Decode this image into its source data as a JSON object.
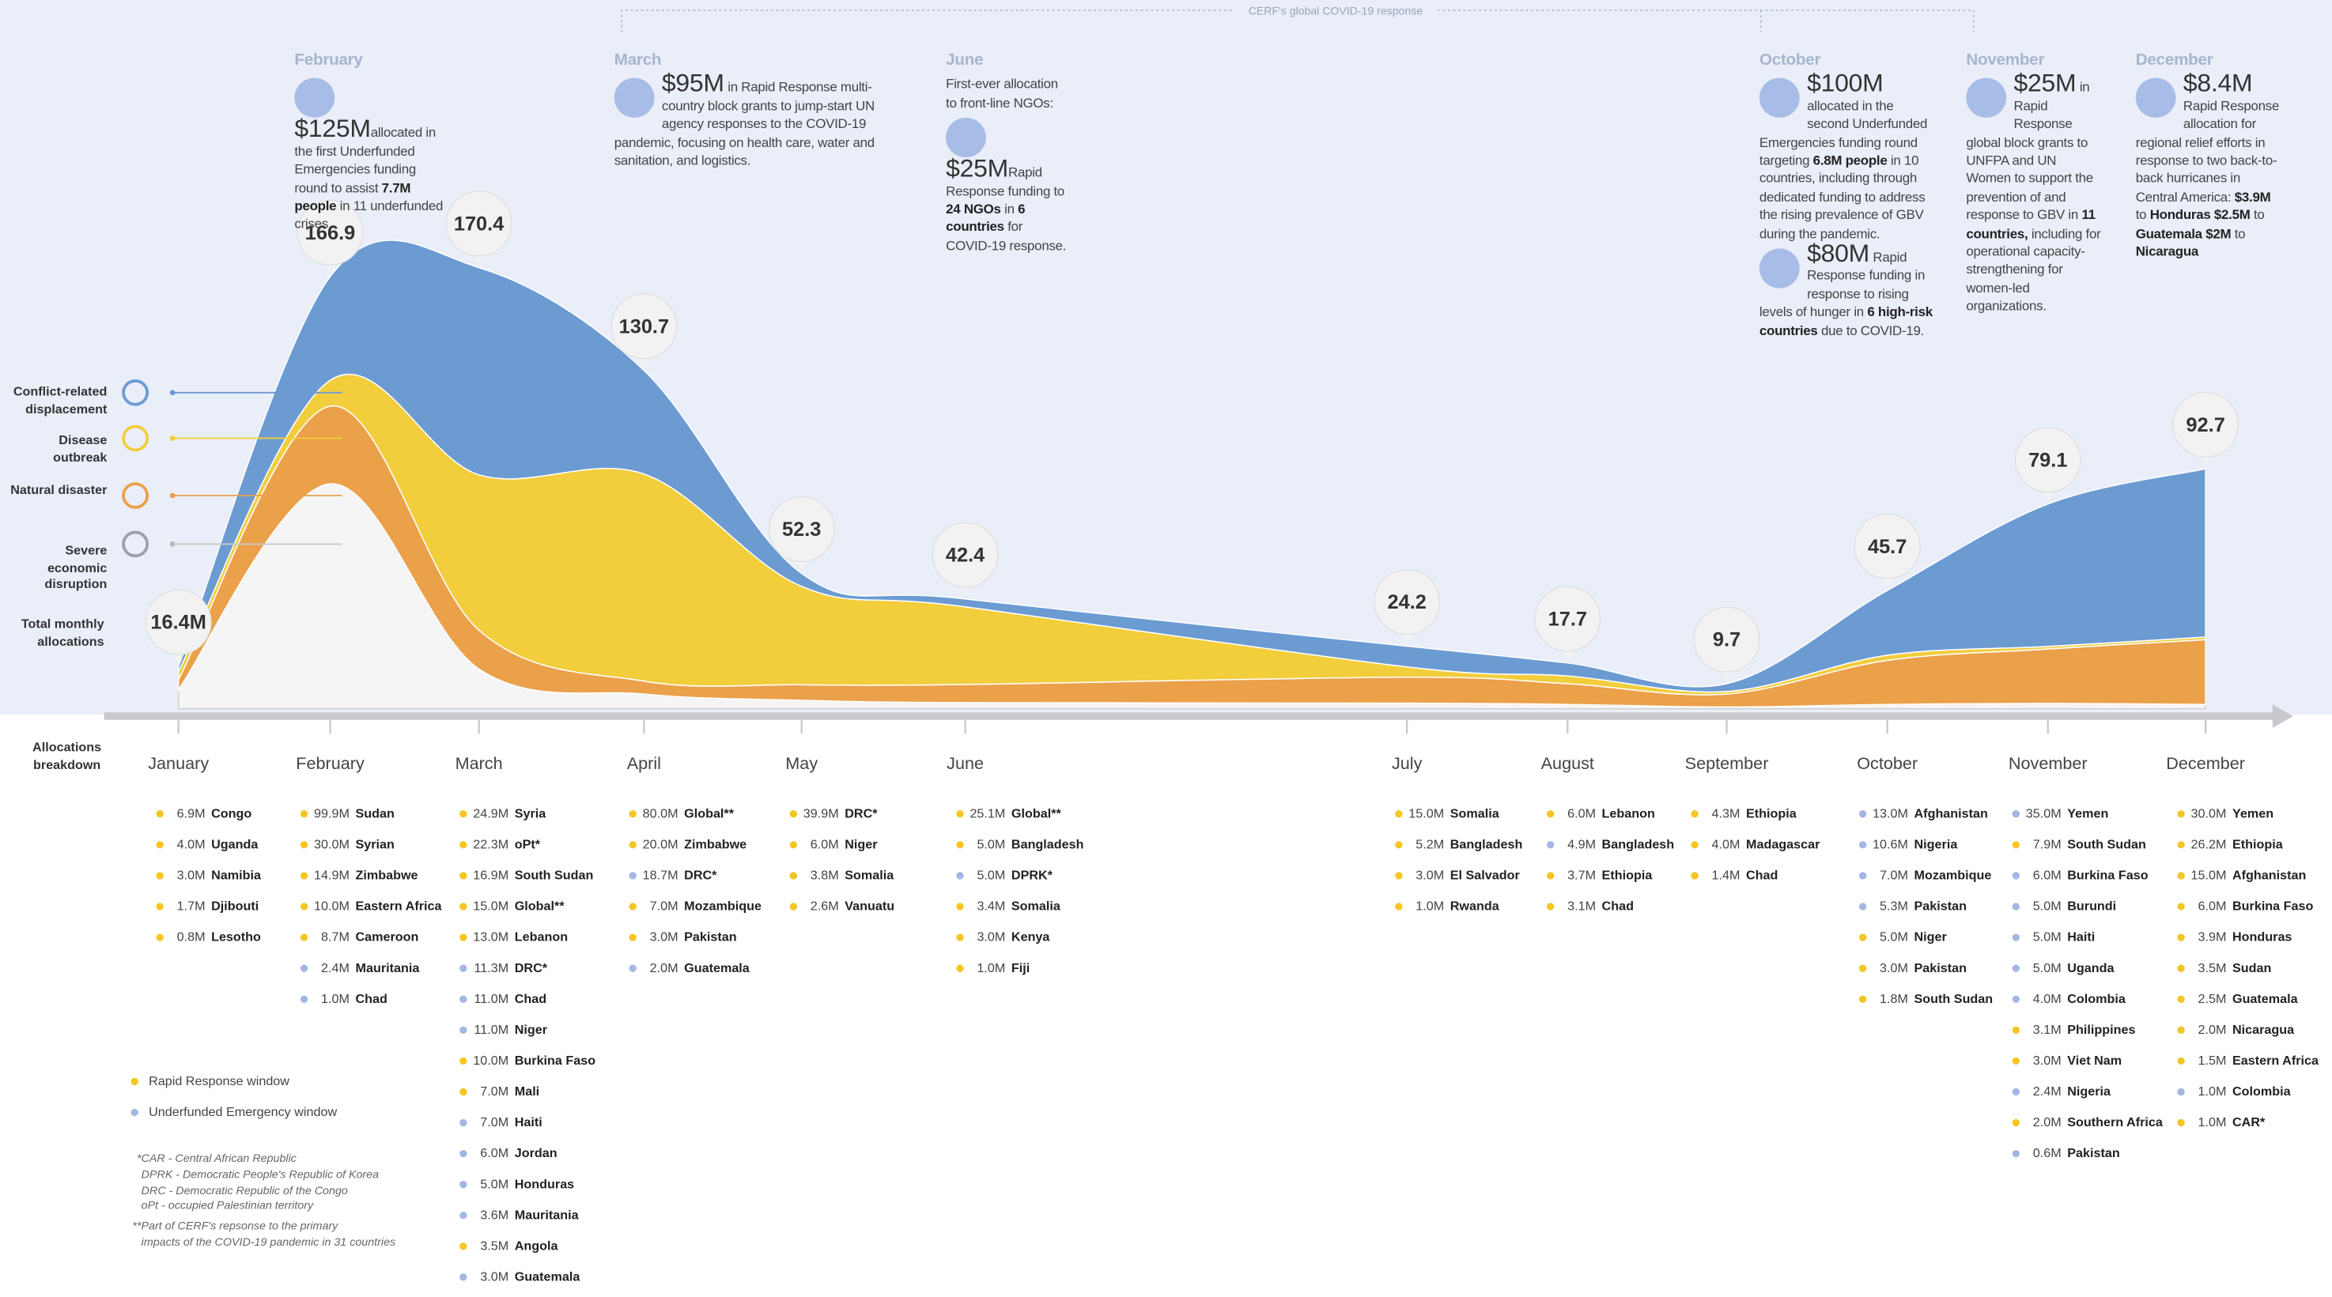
{
  "bracket_label": "CERF's global COVID-19 response",
  "chart_data": {
    "type": "area",
    "categories": [
      "January",
      "February",
      "March",
      "April",
      "May",
      "June",
      "July",
      "August",
      "September",
      "October",
      "November",
      "December"
    ],
    "series": [
      {
        "name": "Conflict-related displacement",
        "color": "#6c9bd2",
        "values": [
          2,
          40,
          80,
          40,
          5,
          3,
          8,
          5,
          3,
          25,
          55,
          65
        ]
      },
      {
        "name": "Disease outbreak",
        "color": "#f2cd3c",
        "values": [
          3,
          10,
          60,
          80,
          38,
          30,
          4,
          3,
          1,
          2,
          1,
          1
        ]
      },
      {
        "name": "Natural disaster",
        "color": "#eba04a",
        "values": [
          4,
          30,
          15,
          5,
          6,
          7,
          10,
          8,
          5,
          17,
          21,
          25
        ]
      },
      {
        "name": "Severe economic disruption",
        "color": "#f5f5f5",
        "values": [
          7.4,
          86.9,
          15.4,
          5.7,
          3.3,
          2.4,
          2.2,
          1.7,
          0.7,
          1.7,
          2.1,
          1.7
        ]
      }
    ],
    "totals": {
      "name": "Total monthly allocations",
      "values": [
        16.4,
        166.9,
        170.4,
        130.7,
        52.3,
        42.4,
        24.2,
        17.7,
        9.7,
        45.7,
        79.1,
        92.7
      ],
      "value_labels": [
        "16.4M",
        "166.9",
        "170.4",
        "130.7",
        "52.3",
        "42.4",
        "24.2",
        "17.7",
        "9.7",
        "45.7",
        "79.1",
        "92.7"
      ]
    },
    "stacked": true
  },
  "annotations": [
    {
      "month": "February",
      "blocks": [
        {
          "amount": "$125M",
          "body": [
            "allocated in the first Underfunded Emergencies funding round to assist ",
            {
              "b": "7.7M people"
            },
            " in 11 underfunded crises."
          ]
        }
      ]
    },
    {
      "month": "March",
      "blocks": [
        {
          "amount": "$95M",
          "body": [
            " in Rapid Response multi-country block grants to jump-start UN agency responses to the COVID-19 pandemic, focusing on health care, water and sanitation, and logistics."
          ]
        }
      ]
    },
    {
      "month": "June",
      "intro": "First-ever allocation to front-line NGOs:",
      "blocks": [
        {
          "amount": "$25M",
          "body": [
            "Rapid Response funding to ",
            {
              "b": "24 NGOs"
            },
            " in ",
            {
              "b": "6 countries"
            },
            " for COVID-19 response."
          ]
        }
      ]
    },
    {
      "month": "October",
      "blocks": [
        {
          "amount": "$100M",
          "body": [
            " allocated in the second Underfunded Emergencies funding round targeting ",
            {
              "b": "6.8M people"
            },
            " in 10 countries, including through dedicated funding to address the rising prevalence of GBV during the pandemic."
          ]
        },
        {
          "amount": "$80M",
          "body": [
            " Rapid Response funding in response to rising levels of hunger in ",
            {
              "b": "6 high-risk countries"
            },
            " due to COVID-19."
          ]
        }
      ]
    },
    {
      "month": "November",
      "blocks": [
        {
          "amount": "$25M",
          "body": [
            " in Rapid Response global block grants to UNFPA and UN Women to support the prevention of and response to GBV in ",
            {
              "b": "11 countries,"
            },
            " including for operational capacity-strengthening for women-led organizations."
          ]
        }
      ]
    },
    {
      "month": "December",
      "blocks": [
        {
          "amount": "$8.4M",
          "body": [
            " Rapid Response allocation for regional relief efforts in response to two back-to-back hurricanes in Central America: ",
            {
              "b": "$3.9M"
            },
            " to ",
            {
              "b": "Honduras"
            },
            " ",
            {
              "b": "$2.5M"
            },
            " to ",
            {
              "b": "Guatemala"
            },
            " ",
            {
              "b": "$2M"
            },
            " to ",
            {
              "b": "Nicaragua"
            }
          ]
        }
      ]
    }
  ],
  "breakdown": {
    "title": "Allocations breakdown",
    "columns": [
      [
        [
          "6.9M",
          "Congo",
          "#f3c623"
        ],
        [
          "4.0M",
          "Uganda",
          "#f3c623"
        ],
        [
          "3.0M",
          "Namibia",
          "#f3c623"
        ],
        [
          "1.7M",
          "Djibouti",
          "#f3c623"
        ],
        [
          "0.8M",
          "Lesotho",
          "#f3c623"
        ]
      ],
      [
        [
          "99.9M",
          "Sudan",
          "#f3c623"
        ],
        [
          "30.0M",
          "Syrian",
          "#f3c623"
        ],
        [
          "14.9M",
          "Zimbabwe",
          "#f3c623"
        ],
        [
          "10.0M",
          "Eastern Africa",
          "#f3c623"
        ],
        [
          "8.7M",
          "Cameroon",
          "#f3c623"
        ],
        [
          "2.4M",
          "Mauritania",
          "#a4b6e2"
        ],
        [
          "1.0M",
          "Chad",
          "#a4b6e2"
        ]
      ],
      [
        [
          "24.9M",
          "Syria",
          "#f3c623"
        ],
        [
          "22.3M",
          "oPt*",
          "#f3c623"
        ],
        [
          "16.9M",
          "South Sudan",
          "#f3c623"
        ],
        [
          "15.0M",
          "Global**",
          "#f3c623"
        ],
        [
          "13.0M",
          "Lebanon",
          "#f3c623"
        ],
        [
          "11.3M",
          "DRC*",
          "#a4b6e2"
        ],
        [
          "11.0M",
          "Chad",
          "#a4b6e2"
        ],
        [
          "11.0M",
          "Niger",
          "#a4b6e2"
        ],
        [
          "10.0M",
          "Burkina Faso",
          "#f3c623"
        ],
        [
          "7.0M",
          "Mali",
          "#f3c623"
        ],
        [
          "7.0M",
          "Haiti",
          "#a4b6e2"
        ],
        [
          "6.0M",
          "Jordan",
          "#a4b6e2"
        ],
        [
          "5.0M",
          "Honduras",
          "#a4b6e2"
        ],
        [
          "3.6M",
          "Mauritania",
          "#a4b6e2"
        ],
        [
          "3.5M",
          "Angola",
          "#f3c623"
        ],
        [
          "3.0M",
          "Guatemala",
          "#a4b6e2"
        ]
      ],
      [
        [
          "80.0M",
          "Global**",
          "#f3c623"
        ],
        [
          "20.0M",
          "Zimbabwe",
          "#f3c623"
        ],
        [
          "18.7M",
          "DRC*",
          "#a4b6e2"
        ],
        [
          "7.0M",
          "Mozambique",
          "#f3c623"
        ],
        [
          "3.0M",
          "Pakistan",
          "#f3c623"
        ],
        [
          "2.0M",
          "Guatemala",
          "#a4b6e2"
        ]
      ],
      [
        [
          "39.9M",
          "DRC*",
          "#f3c623"
        ],
        [
          "6.0M",
          "Niger",
          "#f3c623"
        ],
        [
          "3.8M",
          "Somalia",
          "#f3c623"
        ],
        [
          "2.6M",
          "Vanuatu",
          "#f3c623"
        ]
      ],
      [
        [
          "25.1M",
          "Global**",
          "#f3c623"
        ],
        [
          "5.0M",
          "Bangladesh",
          "#f3c623"
        ],
        [
          "5.0M",
          "DPRK*",
          "#a4b6e2"
        ],
        [
          "3.4M",
          "Somalia",
          "#f3c623"
        ],
        [
          "3.0M",
          "Kenya",
          "#f3c623"
        ],
        [
          "1.0M",
          "Fiji",
          "#f3c623"
        ]
      ],
      [
        [
          "15.0M",
          "Somalia",
          "#f3c623"
        ],
        [
          "5.2M",
          "Bangladesh",
          "#f3c623"
        ],
        [
          "3.0M",
          "El Salvador",
          "#f3c623"
        ],
        [
          "1.0M",
          "Rwanda",
          "#f3c623"
        ]
      ],
      [
        [
          "6.0M",
          "Lebanon",
          "#f3c623"
        ],
        [
          "4.9M",
          "Bangladesh",
          "#a4b6e2"
        ],
        [
          "3.7M",
          "Ethiopia",
          "#f3c623"
        ],
        [
          "3.1M",
          "Chad",
          "#f3c623"
        ]
      ],
      [
        [
          "4.3M",
          "Ethiopia",
          "#f3c623"
        ],
        [
          "4.0M",
          "Madagascar",
          "#f3c623"
        ],
        [
          "1.4M",
          "Chad",
          "#f3c623"
        ]
      ],
      [
        [
          "13.0M",
          "Afghanistan",
          "#a4b6e2"
        ],
        [
          "10.6M",
          "Nigeria",
          "#a4b6e2"
        ],
        [
          "7.0M",
          "Mozambique",
          "#a4b6e2"
        ],
        [
          "5.3M",
          "Pakistan",
          "#a4b6e2"
        ],
        [
          "5.0M",
          "Niger",
          "#f3c623"
        ],
        [
          "3.0M",
          "Pakistan",
          "#f3c623"
        ],
        [
          "1.8M",
          "South Sudan",
          "#f3c623"
        ]
      ],
      [
        [
          "35.0M",
          "Yemen",
          "#a4b6e2"
        ],
        [
          "7.9M",
          "South Sudan",
          "#f3c623"
        ],
        [
          "6.0M",
          "Burkina Faso",
          "#a4b6e2"
        ],
        [
          "5.0M",
          "Burundi",
          "#a4b6e2"
        ],
        [
          "5.0M",
          "Haiti",
          "#a4b6e2"
        ],
        [
          "5.0M",
          "Uganda",
          "#a4b6e2"
        ],
        [
          "4.0M",
          "Colombia",
          "#a4b6e2"
        ],
        [
          "3.1M",
          "Philippines",
          "#f3c623"
        ],
        [
          "3.0M",
          "Viet Nam",
          "#f3c623"
        ],
        [
          "2.4M",
          "Nigeria",
          "#a4b6e2"
        ],
        [
          "2.0M",
          "Southern Africa",
          "#f3c623"
        ],
        [
          "0.6M",
          "Pakistan",
          "#a4b6e2"
        ]
      ],
      [
        [
          "30.0M",
          "Yemen",
          "#f3c623"
        ],
        [
          "26.2M",
          "Ethiopia",
          "#f3c623"
        ],
        [
          "15.0M",
          "Afghanistan",
          "#f3c623"
        ],
        [
          "6.0M",
          "Burkina Faso",
          "#f3c623"
        ],
        [
          "3.9M",
          "Honduras",
          "#f3c623"
        ],
        [
          "3.5M",
          "Sudan",
          "#f3c623"
        ],
        [
          "2.5M",
          "Guatemala",
          "#f3c623"
        ],
        [
          "2.0M",
          "Nicaragua",
          "#f3c623"
        ],
        [
          "1.5M",
          "Eastern Africa",
          "#f3c623"
        ],
        [
          "1.0M",
          "Colombia",
          "#a4b6e2"
        ],
        [
          "1.0M",
          "CAR*",
          "#f3c623"
        ]
      ]
    ],
    "windows": [
      {
        "name": "Rapid Response window",
        "color": "#f3c623"
      },
      {
        "name": "Underfunded Emergency window",
        "color": "#a4b6e2"
      }
    ]
  },
  "footnotes": [
    "*CAR - Central African Republic",
    "DPRK - Democratic People's Republic of Korea",
    "DRC - Democratic Republic of the Congo",
    "oPt - occupied Palestinian territory",
    "**Part of CERF's repsonse to the primary",
    "impacts of the COVID-19 pandemic in 31 countries"
  ]
}
